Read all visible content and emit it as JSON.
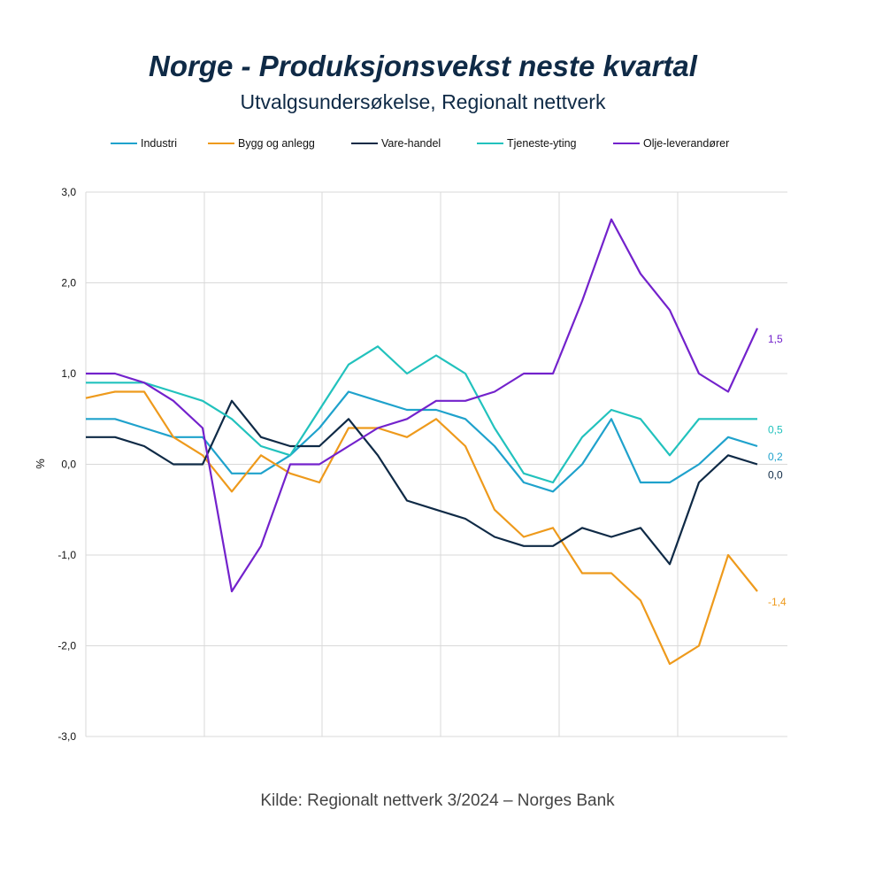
{
  "title": "Norge - Produksjonsvekst neste kvartal",
  "subtitle": "Utvalgsundersøkelse, Regionalt nettverk",
  "source": "Kilde: Regionalt nettverk 3/2024 – Norges Bank",
  "chart_data": {
    "type": "line",
    "ylabel": "%",
    "ylim": [
      -3,
      3
    ],
    "yticks": [
      3,
      2,
      1,
      0,
      -1,
      -2,
      -3
    ],
    "ytick_labels": [
      "3,0",
      "2,0",
      "1,0",
      "0,0",
      "-1,0",
      "-2,0",
      "-3,0"
    ],
    "grid": true,
    "legend_position": "top",
    "n_points": 24,
    "series": [
      {
        "name": "Industri",
        "color": "#1fa2cc",
        "values": [
          0.5,
          0.5,
          0.4,
          0.3,
          0.3,
          -0.1,
          -0.1,
          0.1,
          0.4,
          0.8,
          0.7,
          0.6,
          0.6,
          0.5,
          0.2,
          -0.2,
          -0.3,
          0.0,
          0.5,
          -0.2,
          -0.2,
          0.0,
          0.3,
          0.2
        ],
        "end_label": "0,2"
      },
      {
        "name": "Bygg og anlegg",
        "color": "#ee9a1c",
        "values": [
          0.73,
          0.8,
          0.8,
          0.3,
          0.1,
          -0.3,
          0.1,
          -0.1,
          -0.2,
          0.4,
          0.4,
          0.3,
          0.5,
          0.2,
          -0.5,
          -0.8,
          -0.7,
          -1.2,
          -1.2,
          -1.5,
          -2.2,
          -2.0,
          -1.0,
          -1.4
        ],
        "end_label": "-1,4"
      },
      {
        "name": "Vare-handel",
        "color": "#0f2a46",
        "values": [
          0.3,
          0.3,
          0.2,
          0.0,
          0.0,
          0.7,
          0.3,
          0.2,
          0.2,
          0.5,
          0.1,
          -0.4,
          -0.5,
          -0.6,
          -0.8,
          -0.9,
          -0.9,
          -0.7,
          -0.8,
          -0.7,
          -1.1,
          -0.2,
          0.1,
          0.0
        ],
        "end_label": "0,0"
      },
      {
        "name": "Tjeneste-yting",
        "color": "#22c2bd",
        "values": [
          0.9,
          0.9,
          0.9,
          0.8,
          0.7,
          0.5,
          0.2,
          0.1,
          0.6,
          1.1,
          1.3,
          1.0,
          1.2,
          1.0,
          0.4,
          -0.1,
          -0.2,
          0.3,
          0.6,
          0.5,
          0.1,
          0.5,
          0.5,
          0.5
        ],
        "end_label": "0,5"
      },
      {
        "name": "Olje-leverandører",
        "color": "#7322cc",
        "values": [
          1.0,
          1.0,
          0.9,
          0.7,
          0.4,
          -1.4,
          -0.9,
          0.0,
          0.0,
          0.2,
          0.4,
          0.5,
          0.7,
          0.7,
          0.8,
          1.0,
          1.0,
          1.8,
          2.7,
          2.1,
          1.7,
          1.0,
          0.8,
          1.5
        ],
        "end_label": "1,5"
      }
    ]
  }
}
